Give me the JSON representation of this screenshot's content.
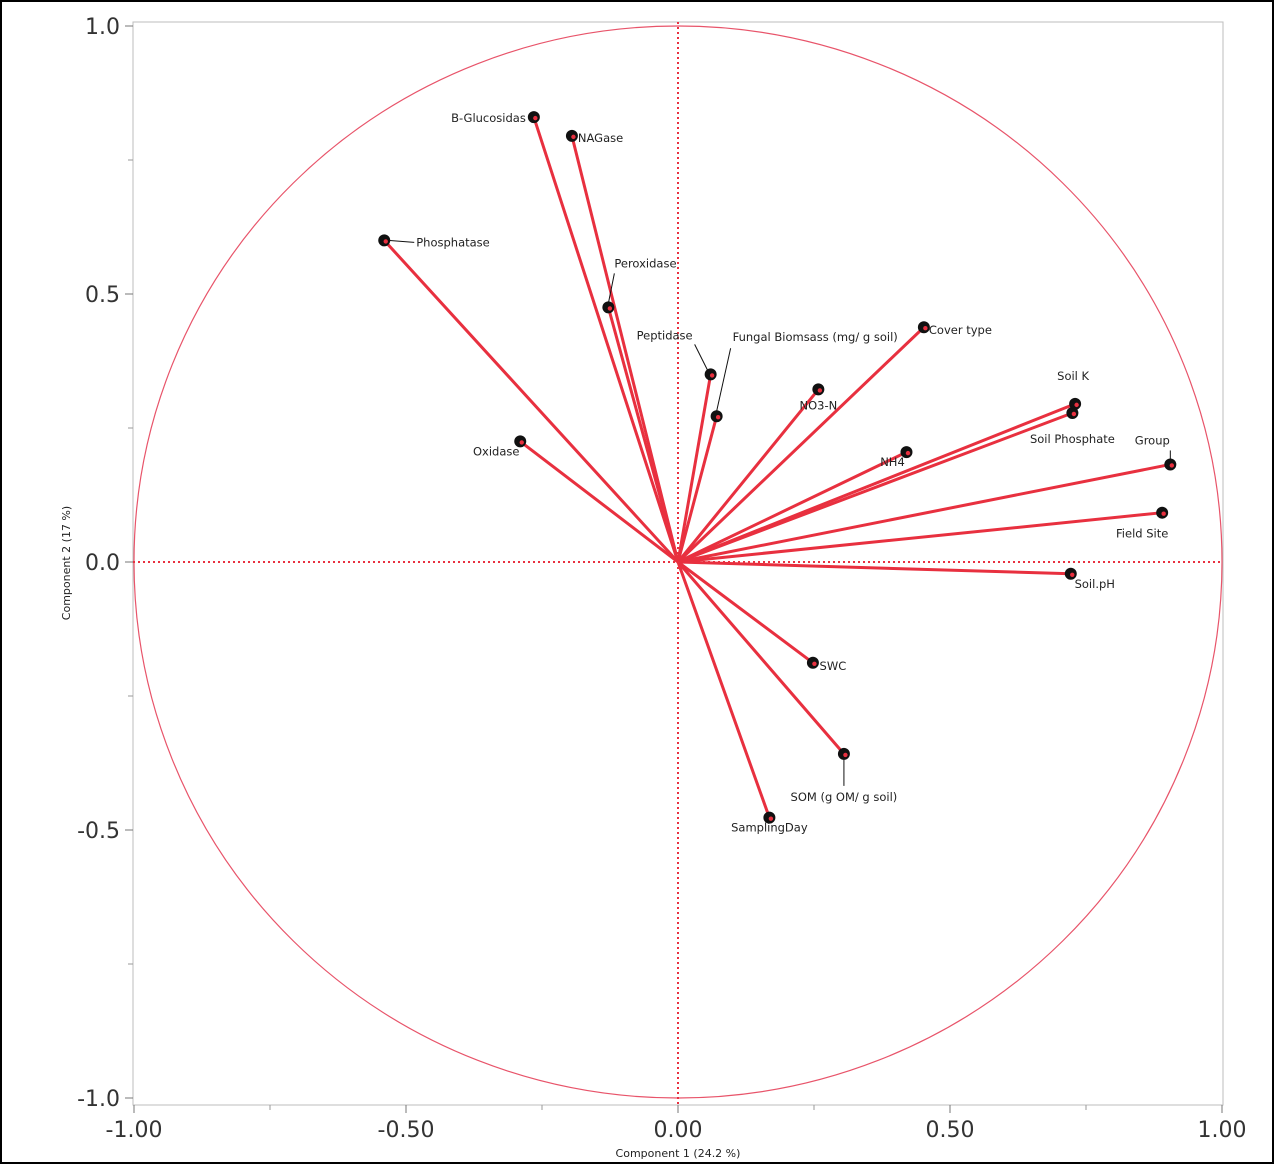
{
  "chart_data": {
    "type": "scatter",
    "subtype": "pca-loading-plot",
    "title": "",
    "xlabel": "Component 1  (24.2 %)",
    "ylabel": "Component 2  (17 %)",
    "xlim": [
      -1.0,
      1.0
    ],
    "ylim": [
      -1.0,
      1.0
    ],
    "x_ticks": [
      {
        "value": -1.0,
        "label": "-1.00"
      },
      {
        "value": -0.5,
        "label": "-0.50"
      },
      {
        "value": 0.0,
        "label": "0.00"
      },
      {
        "value": 0.5,
        "label": "0.50"
      },
      {
        "value": 1.0,
        "label": "1.00"
      }
    ],
    "y_ticks": [
      {
        "value": 1.0,
        "label": "1.0"
      },
      {
        "value": 0.5,
        "label": "0.5"
      },
      {
        "value": 0.0,
        "label": "0.0"
      },
      {
        "value": -0.5,
        "label": "-0.5"
      },
      {
        "value": -1.0,
        "label": "-1.0"
      }
    ],
    "unit_circle": true,
    "zero_lines": true,
    "grid": false,
    "colors": {
      "vector": "#e8303f",
      "circle": "#e8546a",
      "zero_line": "#e8303f",
      "point": "#111111"
    },
    "points": [
      {
        "name": "B-Glucosidase",
        "label": "B-Glucosidas",
        "x": -0.265,
        "y": 0.83
      },
      {
        "name": "NAGase",
        "label": "NAGase",
        "x": -0.195,
        "y": 0.795
      },
      {
        "name": "Phosphatase",
        "label": "Phosphatase",
        "x": -0.54,
        "y": 0.6
      },
      {
        "name": "Peroxidase",
        "label": "Peroxidase",
        "x": -0.128,
        "y": 0.475
      },
      {
        "name": "Peptidase",
        "label": "Peptidase",
        "x": 0.06,
        "y": 0.35
      },
      {
        "name": "Fungal Biomsass (mg/ g soil)",
        "label": "Fungal Biomsass (mg/ g soil)",
        "x": 0.071,
        "y": 0.272
      },
      {
        "name": "Cover type",
        "label": "Cover type",
        "x": 0.452,
        "y": 0.438
      },
      {
        "name": "NO3-N",
        "label": "NO3-N",
        "x": 0.258,
        "y": 0.322
      },
      {
        "name": "Soil K",
        "label": "Soil K",
        "x": 0.73,
        "y": 0.295
      },
      {
        "name": "Soil Phosphate",
        "label": "Soil Phosphate",
        "x": 0.725,
        "y": 0.278
      },
      {
        "name": "NH4",
        "label": "NH4",
        "x": 0.42,
        "y": 0.205
      },
      {
        "name": "Group",
        "label": "Group",
        "x": 0.905,
        "y": 0.182
      },
      {
        "name": "Field Site",
        "label": "Field Site",
        "x": 0.89,
        "y": 0.092
      },
      {
        "name": "Oxidase",
        "label": "Oxidase",
        "x": -0.29,
        "y": 0.225
      },
      {
        "name": "Soil.pH",
        "label": "Soil.pH",
        "x": 0.722,
        "y": -0.022
      },
      {
        "name": "SWC",
        "label": "SWC",
        "x": 0.248,
        "y": -0.188
      },
      {
        "name": "SOM (g OM/ g soil)",
        "label": "SOM (g OM/ g soil)",
        "x": 0.305,
        "y": -0.358
      },
      {
        "name": "SamplingDay",
        "label": "SamplingDay",
        "x": 0.168,
        "y": -0.477
      }
    ]
  }
}
